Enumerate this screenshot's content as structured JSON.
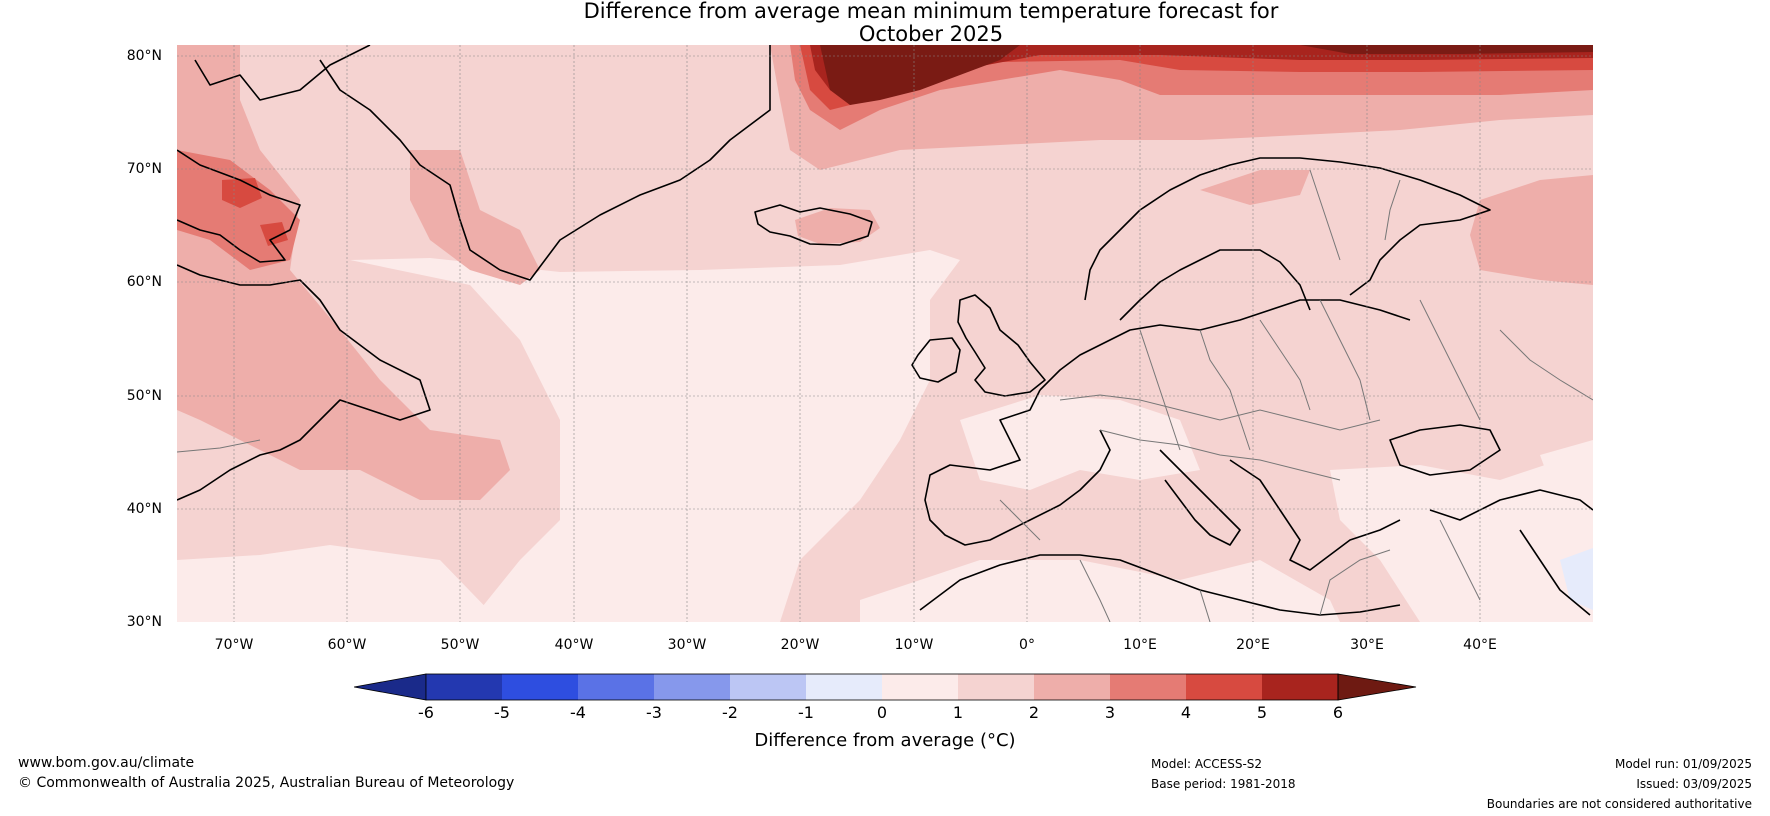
{
  "title": {
    "line1": "Difference from average mean minimum temperature forecast for",
    "line2": "October 2025"
  },
  "map": {
    "lat_labels": [
      "80°N",
      "70°N",
      "60°N",
      "50°N",
      "40°N",
      "30°N"
    ],
    "lon_labels": [
      "70°W",
      "60°W",
      "50°W",
      "40°W",
      "30°W",
      "20°W",
      "10°W",
      "0°",
      "10°E",
      "20°E",
      "30°E",
      "40°E"
    ],
    "lat_range": [
      30,
      81
    ],
    "lon_range": [
      -75,
      50
    ],
    "gridlines": true
  },
  "colorbar": {
    "label": "Difference from average (°C)",
    "ticks": [
      "-6",
      "-5",
      "-4",
      "-3",
      "-2",
      "-1",
      "0",
      "1",
      "2",
      "3",
      "4",
      "5",
      "6"
    ],
    "under_color": "#1a2a8a",
    "over_color": "#6e1a12",
    "bin_colors": [
      "#2338b0",
      "#2e4ee0",
      "#5a72e6",
      "#8698ec",
      "#bcc6f4",
      "#e6ebfb",
      "#fcebea",
      "#f5d3d1",
      "#eeaeaa",
      "#e57b74",
      "#d74a40",
      "#a8241e"
    ]
  },
  "anomaly_colors": {
    "c0_1": "#fcebea",
    "c1_2": "#f5d3d1",
    "c2_3": "#eeaeaa",
    "c3_4": "#e57b74",
    "c4_5": "#d74a40",
    "c5_6": "#a8241e",
    "c6p": "#7a1b14",
    "cm1_0": "#e6ebfb"
  },
  "footer": {
    "website": "www.bom.gov.au/climate",
    "copyright": "© Commonwealth of Australia 2025, Australian Bureau of Meteorology",
    "model": "Model: ACCESS-S2",
    "base_period": "Base period: 1981-2018",
    "model_run": "Model run: 01/09/2025",
    "issued": "Issued: 03/09/2025",
    "disclaimer": "Boundaries are not considered authoritative"
  }
}
